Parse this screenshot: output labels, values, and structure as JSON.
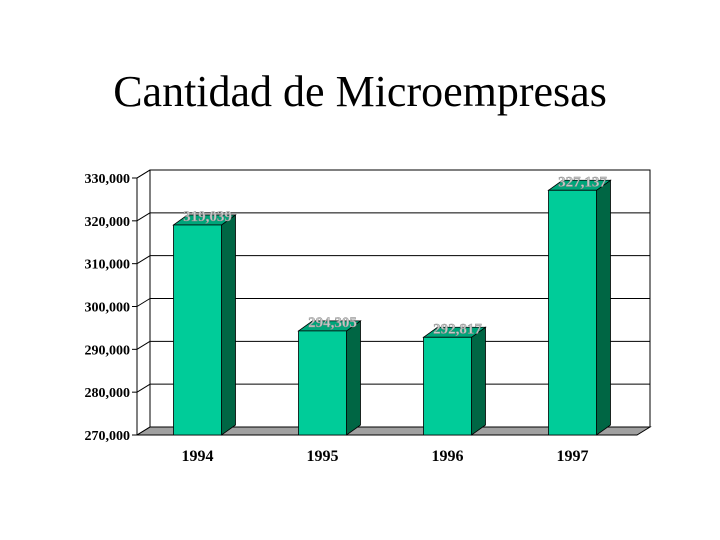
{
  "title": "Cantidad de Microempresas",
  "colors": {
    "bar_front": "#00cc99",
    "bar_side": "#006644",
    "bar_top": "#00a57a",
    "floor": "#a0a0a0",
    "grid": "#000000"
  },
  "chart_data": {
    "type": "bar",
    "title": "Cantidad de Microempresas",
    "categories": [
      "1994",
      "1995",
      "1996",
      "1997"
    ],
    "values": [
      319039,
      294305,
      292817,
      327137
    ],
    "data_labels": [
      "319,039",
      "294,305",
      "292,817",
      "327,137"
    ],
    "ylim": [
      270000,
      330000
    ],
    "yticks": [
      270000,
      280000,
      290000,
      300000,
      310000,
      320000,
      330000
    ],
    "ytick_labels": [
      "270,000",
      "280,000",
      "290,000",
      "300,000",
      "310,000",
      "320,000",
      "330,000"
    ],
    "xlabel": "",
    "ylabel": "",
    "grid": true,
    "style": "3d-bar"
  }
}
